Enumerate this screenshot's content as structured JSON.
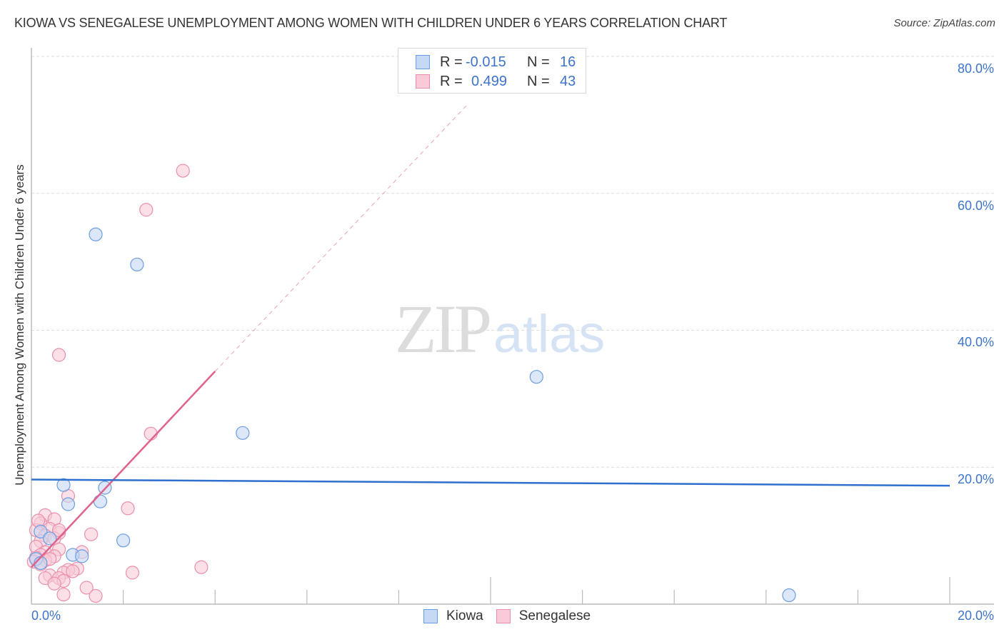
{
  "header": {
    "title": "KIOWA VS SENEGALESE UNEMPLOYMENT AMONG WOMEN WITH CHILDREN UNDER 6 YEARS CORRELATION CHART",
    "source": "Source: ZipAtlas.com"
  },
  "watermark": {
    "zip": "ZIP",
    "atlas": "atlas"
  },
  "legend": {
    "rows": [
      {
        "series": "Kiowa",
        "r_label": "R =",
        "r_value": "-0.015",
        "n_label": "N =",
        "n_value": "16"
      },
      {
        "series": "Senegalese",
        "r_label": "R =",
        "r_value": "0.499",
        "n_label": "N =",
        "n_value": "43"
      }
    ]
  },
  "bottom_legend": [
    {
      "label": "Kiowa"
    },
    {
      "label": "Senegalese"
    }
  ],
  "axes": {
    "ylabel": "Unemployment Among Women with Children Under 6 years",
    "y_ticks": [
      "80.0%",
      "60.0%",
      "40.0%",
      "20.0%"
    ],
    "x_ticks": [
      "0.0%",
      "20.0%"
    ]
  },
  "colors": {
    "kiowa_fill": "#c5d9f5",
    "kiowa_stroke": "#6a9de0",
    "kiowa_line": "#2f6fce",
    "senegalese_fill": "#f9cbd8",
    "senegalese_stroke": "#ea8fab",
    "senegalese_line": "#e0628c",
    "tick_text": "#3d74c9"
  },
  "chart_data": {
    "type": "scatter",
    "title": "KIOWA VS SENEGALESE UNEMPLOYMENT AMONG WOMEN WITH CHILDREN UNDER 6 YEARS CORRELATION CHART",
    "xlabel": "",
    "ylabel": "Unemployment Among Women with Children Under 6 years",
    "xlim": [
      0,
      20
    ],
    "ylim": [
      0,
      80
    ],
    "x_ticks": [
      "0.0%",
      "20.0%"
    ],
    "y_ticks": [
      "20.0%",
      "40.0%",
      "60.0%",
      "80.0%"
    ],
    "grid": true,
    "legend_position": "top-center",
    "series": [
      {
        "name": "Kiowa",
        "R": -0.015,
        "N": 16,
        "points": [
          [
            1.4,
            54.0
          ],
          [
            2.3,
            49.6
          ],
          [
            11.0,
            33.2
          ],
          [
            4.6,
            25.0
          ],
          [
            0.7,
            17.4
          ],
          [
            1.6,
            17.0
          ],
          [
            0.8,
            14.6
          ],
          [
            1.5,
            15.0
          ],
          [
            2.0,
            9.3
          ],
          [
            0.2,
            10.6
          ],
          [
            0.4,
            9.6
          ],
          [
            0.9,
            7.2
          ],
          [
            1.1,
            7.0
          ],
          [
            0.1,
            6.6
          ],
          [
            0.2,
            6.0
          ],
          [
            16.5,
            1.3
          ]
        ],
        "trend": {
          "x": [
            0,
            20
          ],
          "y": [
            18.2,
            17.3
          ]
        }
      },
      {
        "name": "Senegalese",
        "R": 0.499,
        "N": 43,
        "points": [
          [
            3.3,
            63.3
          ],
          [
            2.5,
            57.6
          ],
          [
            0.6,
            36.4
          ],
          [
            2.6,
            24.9
          ],
          [
            0.8,
            15.8
          ],
          [
            2.1,
            14.0
          ],
          [
            0.3,
            13.0
          ],
          [
            0.5,
            12.4
          ],
          [
            0.2,
            11.8
          ],
          [
            0.4,
            11.0
          ],
          [
            0.1,
            10.8
          ],
          [
            0.6,
            10.4
          ],
          [
            0.3,
            10.0
          ],
          [
            1.3,
            10.2
          ],
          [
            0.5,
            9.6
          ],
          [
            0.2,
            9.2
          ],
          [
            0.1,
            8.4
          ],
          [
            0.6,
            8.0
          ],
          [
            0.3,
            7.6
          ],
          [
            1.1,
            7.6
          ],
          [
            0.2,
            7.2
          ],
          [
            0.5,
            7.0
          ],
          [
            0.1,
            6.8
          ],
          [
            0.3,
            6.4
          ],
          [
            0.05,
            6.2
          ],
          [
            0.2,
            5.8
          ],
          [
            1.0,
            5.2
          ],
          [
            0.8,
            5.0
          ],
          [
            0.7,
            4.6
          ],
          [
            3.7,
            5.4
          ],
          [
            2.2,
            4.6
          ],
          [
            0.4,
            4.2
          ],
          [
            0.6,
            3.8
          ],
          [
            0.3,
            3.8
          ],
          [
            0.7,
            3.4
          ],
          [
            0.5,
            3.0
          ],
          [
            1.2,
            2.4
          ],
          [
            0.7,
            1.4
          ],
          [
            1.4,
            1.2
          ],
          [
            0.9,
            4.8
          ],
          [
            0.4,
            6.6
          ],
          [
            0.15,
            12.2
          ],
          [
            0.6,
            10.8
          ]
        ],
        "trend_solid": {
          "x": [
            0,
            4.0
          ],
          "y": [
            5.4,
            34.0
          ]
        },
        "trend_dashed": {
          "x": [
            4.0,
            9.5
          ],
          "y": [
            34.0,
            73.0
          ]
        }
      }
    ]
  }
}
